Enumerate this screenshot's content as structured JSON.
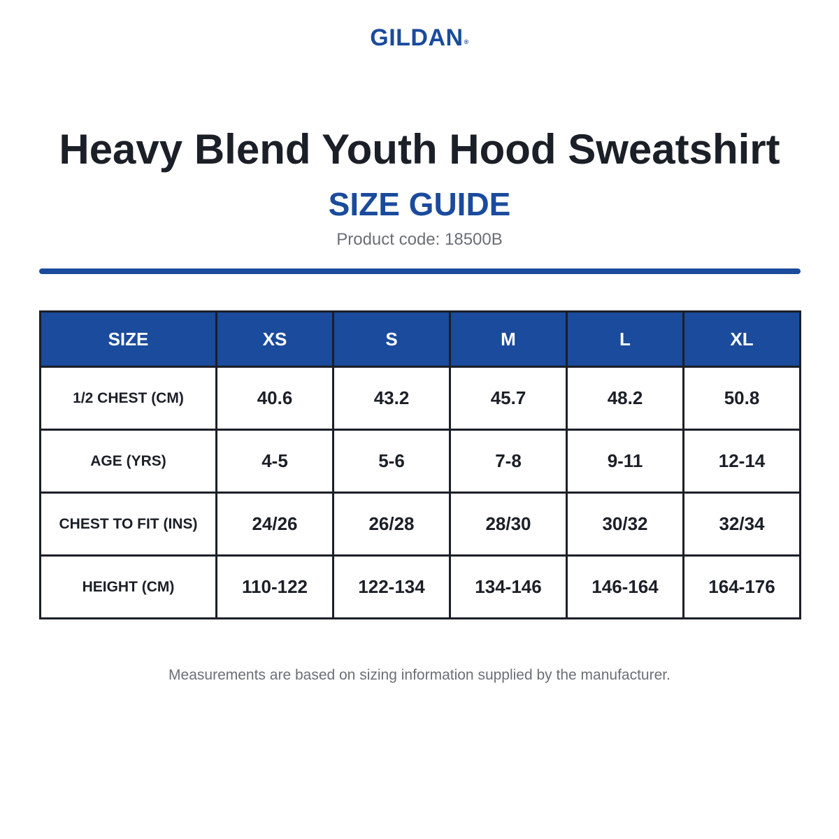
{
  "brand": {
    "logo_text": "GILDAN",
    "trademark": "®",
    "color": "#1a4b9c"
  },
  "header": {
    "title": "Heavy Blend Youth Hood Sweatshirt",
    "subtitle": "SIZE GUIDE",
    "product_code": "Product code: 18500B"
  },
  "colors": {
    "accent": "#1a4b9c",
    "text_dark": "#1b1f27",
    "text_muted": "#6b6f75"
  },
  "table": {
    "header_label": "SIZE",
    "sizes": [
      "XS",
      "S",
      "M",
      "L",
      "XL"
    ],
    "rows": [
      {
        "label": "1/2 CHEST (CM)",
        "values": [
          "40.6",
          "43.2",
          "45.7",
          "48.2",
          "50.8"
        ]
      },
      {
        "label": "AGE (YRS)",
        "values": [
          "4-5",
          "5-6",
          "7-8",
          "9-11",
          "12-14"
        ]
      },
      {
        "label": "CHEST TO FIT (INS)",
        "values": [
          "24/26",
          "26/28",
          "28/30",
          "30/32",
          "32/34"
        ]
      },
      {
        "label": "HEIGHT (CM)",
        "values": [
          "110-122",
          "122-134",
          "134-146",
          "146-164",
          "164-176"
        ]
      }
    ]
  },
  "footer": {
    "note": "Measurements are based on sizing information supplied by the manufacturer."
  }
}
